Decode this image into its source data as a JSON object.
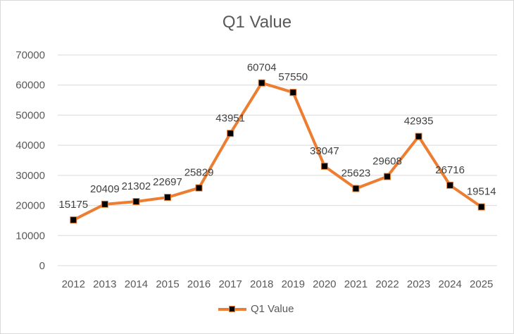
{
  "chart_data": {
    "type": "line",
    "title": "Q1 Value",
    "xlabel": "",
    "ylabel": "",
    "categories": [
      "2012",
      "2013",
      "2014",
      "2015",
      "2016",
      "2017",
      "2018",
      "2019",
      "2020",
      "2021",
      "2022",
      "2023",
      "2024",
      "2025"
    ],
    "series": [
      {
        "name": "Q1 Value",
        "color": "#ED7D31",
        "marker_color": "#000000",
        "values": [
          15175,
          20409,
          21302,
          22697,
          25829,
          43951,
          60704,
          57550,
          33047,
          25623,
          29608,
          42935,
          26716,
          19514
        ]
      }
    ],
    "ylim": [
      0,
      70000
    ],
    "yticks": [
      0,
      10000,
      20000,
      30000,
      40000,
      50000,
      60000,
      70000
    ],
    "grid": true,
    "data_labels": true,
    "legend": "bottom"
  }
}
